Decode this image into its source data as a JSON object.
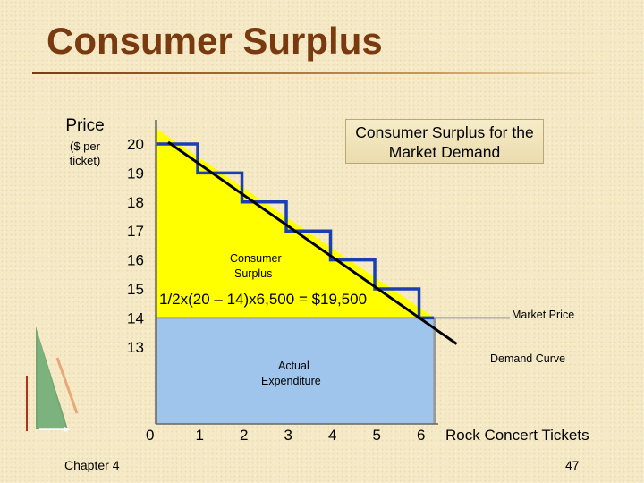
{
  "slide": {
    "title": "Consumer Surplus",
    "footer_left": "Chapter 4",
    "page_number": "47"
  },
  "chart_data": {
    "type": "area",
    "title": "Consumer Surplus for the Market Demand",
    "ylabel": "Price",
    "ylabel_sub": "($ per ticket)",
    "xlabel": "Rock Concert Tickets",
    "x_ticks": [
      "0",
      "1",
      "2",
      "3",
      "4",
      "5",
      "6"
    ],
    "y_ticks": [
      "20",
      "19",
      "18",
      "17",
      "16",
      "15",
      "14",
      "13"
    ],
    "xlim": [
      0,
      6.5
    ],
    "ylim": [
      12,
      20.2
    ],
    "market_price": 14,
    "max_quantity": 6.3,
    "demand_curve": {
      "x": [
        0,
        6.8
      ],
      "y": [
        20,
        13.1
      ]
    },
    "step_demand": {
      "x": [
        0,
        1,
        2,
        3,
        4,
        5,
        6
      ],
      "y": [
        20,
        19,
        18,
        17,
        16,
        15,
        14
      ]
    },
    "annotations": {
      "consumer_surplus": "Consumer Surplus",
      "formula": "1/2x(20 – 14)x6,500 = $19,500",
      "market_price": "Market Price",
      "actual_expenditure": "Actual Expenditure",
      "demand_curve": "Demand Curve"
    },
    "colors": {
      "surplus": "#ffff00",
      "expenditure": "#9fc5ec",
      "demand": "#000000",
      "steps": "#1b3fb0",
      "market_price_line": "#999999"
    }
  }
}
